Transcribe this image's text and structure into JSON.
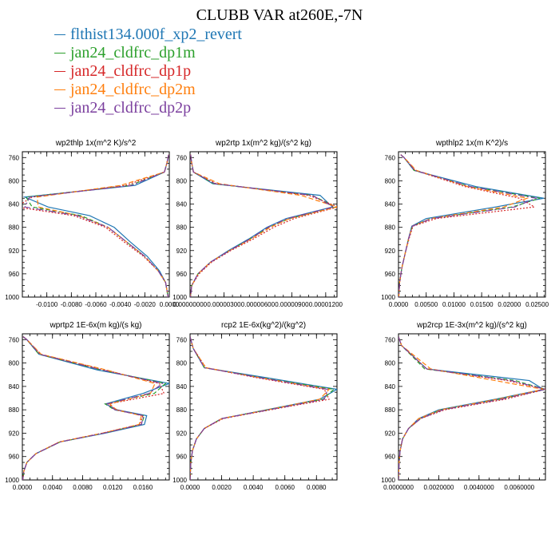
{
  "figure": {
    "title": "CLUBB VAR at260E,-7N"
  },
  "legend": [
    {
      "name": "flthist134.000f_xp2_revert",
      "color": "#1f77b4"
    },
    {
      "name": "jan24_cldfrc_dp1m",
      "color": "#2ca02c"
    },
    {
      "name": "jan24_cldfrc_dp1p",
      "color": "#d62728"
    },
    {
      "name": "jan24_cldfrc_dp2m",
      "color": "#ff7f0e"
    },
    {
      "name": "jan24_cldfrc_dp2p",
      "color": "#7b3f9e"
    }
  ],
  "chart_data": [
    {
      "type": "line",
      "title": "wp2thlp   1x(m^2 K)/s^2",
      "xlim": [
        -0.012,
        0.0
      ],
      "ylim": [
        1000,
        750
      ],
      "xticks": [
        -0.01,
        -0.008,
        -0.006,
        -0.004,
        -0.002,
        0.0
      ],
      "xtick_labels": [
        "-0.0100",
        "-0.0080",
        "-0.0060",
        "-0.0040",
        "-0.0020",
        "0.0000"
      ],
      "yticks": [
        760,
        800,
        840,
        880,
        920,
        960,
        1000
      ],
      "y": [
        755,
        770,
        785,
        808,
        828,
        845,
        860,
        880,
        905,
        930,
        955,
        975,
        1000
      ],
      "series": [
        {
          "name": "flthist134.000f_xp2_revert",
          "color": "#1f77b4",
          "dash": "",
          "values": [
            -5e-05,
            -0.0002,
            -0.0004,
            -0.0028,
            -0.0118,
            -0.0099,
            -0.0065,
            -0.0045,
            -0.0032,
            -0.0018,
            -0.0008,
            -0.0003,
            -0.0001
          ]
        },
        {
          "name": "jan24_cldfrc_dp1m",
          "color": "#2ca02c",
          "dash": "5,3",
          "values": [
            -5e-05,
            -0.0002,
            -0.0004,
            -0.0032,
            -0.0117,
            -0.0112,
            -0.0072,
            -0.005,
            -0.0035,
            -0.002,
            -0.0009,
            -0.0003,
            -0.0001
          ]
        },
        {
          "name": "jan24_cldfrc_dp1p",
          "color": "#d62728",
          "dash": "2,2",
          "values": [
            -5e-05,
            -0.0002,
            -0.0004,
            -0.0036,
            -0.0112,
            -0.0125,
            -0.0078,
            -0.0052,
            -0.0037,
            -0.0021,
            -0.0009,
            -0.0003,
            -0.0001
          ]
        },
        {
          "name": "jan24_cldfrc_dp2m",
          "color": "#ff7f0e",
          "dash": "6,3",
          "values": [
            -5e-05,
            -0.0002,
            -0.0004,
            -0.004,
            -0.0108,
            -0.0107,
            -0.0074,
            -0.005,
            -0.0035,
            -0.002,
            -0.0009,
            -0.0003,
            -0.0001
          ]
        },
        {
          "name": "jan24_cldfrc_dp2p",
          "color": "#7b3f9e",
          "dash": "8,3,2,3",
          "values": [
            -5e-05,
            -0.0002,
            -0.0004,
            -0.0031,
            -0.0114,
            -0.0118,
            -0.0075,
            -0.005,
            -0.0035,
            -0.002,
            -0.0009,
            -0.0003,
            -0.0001
          ]
        }
      ]
    },
    {
      "type": "line",
      "title": "wp2rtp   1x(m^2 kg)/(s^2 kg)",
      "xlim": [
        0.0,
        1.3e-05
      ],
      "ylim": [
        1000,
        750
      ],
      "xticks": [
        0.0,
        3e-06,
        6e-06,
        9e-06,
        1.2e-05
      ],
      "xtick_labels": [
        "0.00000000",
        "0.00000300",
        "0.00000600",
        "0.00000900",
        "0.00001200"
      ],
      "yticks": [
        760,
        800,
        840,
        880,
        920,
        960,
        1000
      ],
      "y": [
        755,
        770,
        785,
        805,
        825,
        845,
        865,
        880,
        900,
        920,
        940,
        960,
        980,
        1000
      ],
      "series": [
        {
          "name": "flthist134.000f_xp2_revert",
          "color": "#1f77b4",
          "dash": "",
          "values": [
            5e-08,
            1.5e-07,
            3e-07,
            2e-06,
            1.15e-05,
            1.26e-05,
            8.5e-06,
            6.8e-06,
            5.2e-06,
            3.4e-06,
            1.8e-06,
            7e-07,
            1.5e-07,
            3e-08
          ]
        },
        {
          "name": "jan24_cldfrc_dp1m",
          "color": "#2ca02c",
          "dash": "5,3",
          "values": [
            5e-08,
            1.5e-07,
            3e-07,
            2.1e-06,
            1.08e-05,
            1.29e-05,
            8.8e-06,
            7e-06,
            5.3e-06,
            3.5e-06,
            1.8e-06,
            7e-07,
            1.5e-07,
            3e-08
          ]
        },
        {
          "name": "jan24_cldfrc_dp1p",
          "color": "#d62728",
          "dash": "2,2",
          "values": [
            5e-08,
            1.5e-07,
            3e-07,
            2.3e-06,
            1.05e-05,
            1.31e-05,
            9.2e-06,
            7.4e-06,
            5.6e-06,
            3.6e-06,
            1.9e-06,
            8e-07,
            1.5e-07,
            3e-08
          ]
        },
        {
          "name": "jan24_cldfrc_dp2m",
          "color": "#ff7f0e",
          "dash": "6,3",
          "values": [
            5e-08,
            1.5e-07,
            3e-07,
            2.6e-06,
            9.8e-06,
            1.3e-05,
            8.8e-06,
            7.1e-06,
            5.4e-06,
            3.5e-06,
            1.8e-06,
            7e-07,
            1.5e-07,
            3e-08
          ]
        },
        {
          "name": "jan24_cldfrc_dp2p",
          "color": "#7b3f9e",
          "dash": "8,3,2,3",
          "values": [
            5e-08,
            1.5e-07,
            3e-07,
            2.2e-06,
            1.08e-05,
            1.27e-05,
            8.6e-06,
            6.9e-06,
            5.3e-06,
            3.5e-06,
            1.8e-06,
            7e-07,
            1.5e-07,
            3e-08
          ]
        }
      ]
    },
    {
      "type": "line",
      "title": "wpthlp2   1x(m K^2)/s",
      "xlim": [
        0.0,
        0.0265
      ],
      "ylim": [
        1000,
        750
      ],
      "xticks": [
        0.0,
        0.005,
        0.01,
        0.015,
        0.02,
        0.025
      ],
      "xtick_labels": [
        "0.0000",
        "0.00500",
        "0.01000",
        "0.01500",
        "0.02000",
        "0.02500"
      ],
      "yticks": [
        760,
        800,
        840,
        880,
        920,
        960,
        1000
      ],
      "y": [
        755,
        760,
        782,
        810,
        830,
        845,
        865,
        878,
        900,
        925,
        950,
        975,
        1000
      ],
      "series": [
        {
          "name": "flthist134.000f_xp2_revert",
          "color": "#1f77b4",
          "dash": "",
          "values": [
            0.0004,
            0.001,
            0.0028,
            0.014,
            0.0262,
            0.0175,
            0.005,
            0.0024,
            0.0018,
            0.0012,
            0.0006,
            0.0002,
            5e-05
          ]
        },
        {
          "name": "jan24_cldfrc_dp1m",
          "color": "#2ca02c",
          "dash": "5,3",
          "values": [
            0.0004,
            0.001,
            0.0028,
            0.013,
            0.0255,
            0.0205,
            0.0058,
            0.0025,
            0.0018,
            0.0012,
            0.0006,
            0.0002,
            5e-05
          ]
        },
        {
          "name": "jan24_cldfrc_dp1p",
          "color": "#d62728",
          "dash": "2,2",
          "values": [
            0.0004,
            0.001,
            0.003,
            0.012,
            0.0218,
            0.0245,
            0.0068,
            0.0026,
            0.0019,
            0.0012,
            0.0006,
            0.0002,
            5e-05
          ]
        },
        {
          "name": "jan24_cldfrc_dp2m",
          "color": "#ff7f0e",
          "dash": "6,3",
          "values": [
            0.0004,
            0.001,
            0.0032,
            0.0125,
            0.0232,
            0.019,
            0.0058,
            0.0025,
            0.0018,
            0.0012,
            0.0006,
            0.0002,
            5e-05
          ]
        },
        {
          "name": "jan24_cldfrc_dp2p",
          "color": "#7b3f9e",
          "dash": "8,3,2,3",
          "values": [
            0.0004,
            0.001,
            0.0029,
            0.013,
            0.0248,
            0.021,
            0.006,
            0.0025,
            0.0018,
            0.0012,
            0.0006,
            0.0002,
            5e-05
          ]
        }
      ]
    },
    {
      "type": "line",
      "title": "wprtp2   1E-6x(m kg)/(s kg)",
      "xlim": [
        0.0,
        0.0195
      ],
      "ylim": [
        1000,
        750
      ],
      "xticks": [
        0.0,
        0.004,
        0.008,
        0.012,
        0.016
      ],
      "xtick_labels": [
        "0.0000",
        "0.0040",
        "0.0080",
        "0.0120",
        "0.0160"
      ],
      "yticks": [
        760,
        800,
        840,
        880,
        920,
        960,
        1000
      ],
      "y": [
        755,
        760,
        785,
        812,
        835,
        852,
        870,
        880,
        890,
        905,
        920,
        935,
        955,
        970,
        985,
        1000
      ],
      "series": [
        {
          "name": "flthist134.000f_xp2_revert",
          "color": "#1f77b4",
          "dash": "",
          "values": [
            0.0001,
            0.0006,
            0.0022,
            0.01,
            0.0195,
            0.016,
            0.011,
            0.0126,
            0.0165,
            0.0162,
            0.011,
            0.005,
            0.0018,
            0.0006,
            0.0002,
            5e-05
          ]
        },
        {
          "name": "jan24_cldfrc_dp1m",
          "color": "#2ca02c",
          "dash": "5,3",
          "values": [
            0.0001,
            0.0006,
            0.0022,
            0.0105,
            0.019,
            0.0175,
            0.011,
            0.0122,
            0.0162,
            0.0158,
            0.0108,
            0.005,
            0.0018,
            0.0006,
            0.0002,
            5e-05
          ]
        },
        {
          "name": "jan24_cldfrc_dp1p",
          "color": "#d62728",
          "dash": "2,2",
          "values": [
            0.0001,
            0.0006,
            0.0024,
            0.011,
            0.0182,
            0.0188,
            0.0114,
            0.0124,
            0.016,
            0.0156,
            0.0106,
            0.0049,
            0.0018,
            0.0006,
            0.0002,
            5e-05
          ]
        },
        {
          "name": "jan24_cldfrc_dp2m",
          "color": "#ff7f0e",
          "dash": "6,3",
          "values": [
            0.0001,
            0.0006,
            0.0025,
            0.0112,
            0.0176,
            0.017,
            0.0116,
            0.0125,
            0.0158,
            0.0155,
            0.0106,
            0.0049,
            0.0018,
            0.0006,
            0.0002,
            5e-05
          ]
        },
        {
          "name": "jan24_cldfrc_dp2p",
          "color": "#7b3f9e",
          "dash": "8,3,2,3",
          "values": [
            0.0001,
            0.0006,
            0.0023,
            0.0106,
            0.0186,
            0.0168,
            0.0112,
            0.0123,
            0.0161,
            0.0158,
            0.0108,
            0.005,
            0.0018,
            0.0006,
            0.0002,
            5e-05
          ]
        }
      ]
    },
    {
      "type": "line",
      "title": "rcp2   1E-6x(kg^2)/(kg^2)",
      "xlim": [
        0.0,
        0.0093
      ],
      "ylim": [
        1000,
        750
      ],
      "xticks": [
        0.0,
        0.002,
        0.004,
        0.006,
        0.008
      ],
      "xtick_labels": [
        "0.0000",
        "0.0020",
        "0.0040",
        "0.0060",
        "0.0080"
      ],
      "yticks": [
        760,
        800,
        840,
        880,
        920,
        960,
        1000
      ],
      "y": [
        755,
        775,
        808,
        825,
        845,
        862,
        878,
        895,
        912,
        930,
        950,
        970,
        1000
      ],
      "series": [
        {
          "name": "flthist134.000f_xp2_revert",
          "color": "#1f77b4",
          "dash": "",
          "values": [
            0.0,
            0.0002,
            0.0009,
            0.0048,
            0.0093,
            0.0082,
            0.0052,
            0.002,
            0.0009,
            0.0004,
            0.00015,
            5e-05,
            0.0
          ]
        },
        {
          "name": "jan24_cldfrc_dp1m",
          "color": "#2ca02c",
          "dash": "5,3",
          "values": [
            0.0,
            0.0002,
            0.0009,
            0.0045,
            0.0091,
            0.0084,
            0.0053,
            0.002,
            0.0009,
            0.0004,
            0.00015,
            5e-05,
            0.0
          ]
        },
        {
          "name": "jan24_cldfrc_dp1p",
          "color": "#d62728",
          "dash": "2,2",
          "values": [
            0.0,
            0.0002,
            0.001,
            0.0042,
            0.0085,
            0.0088,
            0.0055,
            0.0021,
            0.0009,
            0.0004,
            0.00015,
            5e-05,
            0.0
          ]
        },
        {
          "name": "jan24_cldfrc_dp2m",
          "color": "#ff7f0e",
          "dash": "6,3",
          "values": [
            0.0,
            0.0002,
            0.001,
            0.0044,
            0.0088,
            0.0082,
            0.0053,
            0.002,
            0.0009,
            0.0004,
            0.00015,
            5e-05,
            0.0
          ]
        },
        {
          "name": "jan24_cldfrc_dp2p",
          "color": "#7b3f9e",
          "dash": "8,3,2,3",
          "values": [
            0.0,
            0.0002,
            0.0009,
            0.0044,
            0.0087,
            0.0085,
            0.0054,
            0.002,
            0.0009,
            0.0004,
            0.00015,
            5e-05,
            0.0
          ]
        }
      ]
    },
    {
      "type": "line",
      "title": "wp2rcp   1E-3x(m^2 kg)/(s^2 kg)",
      "xlim": [
        0.0,
        0.0073
      ],
      "ylim": [
        1000,
        750
      ],
      "xticks": [
        0.0,
        0.002,
        0.004,
        0.006
      ],
      "xtick_labels": [
        "0.0000000",
        "0.0020000",
        "0.0040000",
        "0.0060000"
      ],
      "yticks": [
        760,
        800,
        840,
        880,
        920,
        960,
        1000
      ],
      "y": [
        755,
        770,
        810,
        830,
        845,
        862,
        880,
        895,
        912,
        930,
        950,
        970,
        1000
      ],
      "series": [
        {
          "name": "flthist134.000f_xp2_revert",
          "color": "#1f77b4",
          "dash": "",
          "values": [
            0.0,
            0.00015,
            0.0014,
            0.0065,
            0.0072,
            0.0048,
            0.002,
            0.001,
            0.0005,
            0.0002,
            8e-05,
            3e-05,
            0.0
          ]
        },
        {
          "name": "jan24_cldfrc_dp1m",
          "color": "#2ca02c",
          "dash": "5,3",
          "values": [
            0.0,
            0.00015,
            0.0013,
            0.0058,
            0.0073,
            0.005,
            0.0021,
            0.0011,
            0.0005,
            0.0002,
            8e-05,
            3e-05,
            0.0
          ]
        },
        {
          "name": "jan24_cldfrc_dp1p",
          "color": "#d62728",
          "dash": "2,2",
          "values": [
            0.0,
            0.00015,
            0.0014,
            0.0054,
            0.0073,
            0.0053,
            0.0023,
            0.0011,
            0.0005,
            0.0002,
            8e-05,
            3e-05,
            0.0
          ]
        },
        {
          "name": "jan24_cldfrc_dp2m",
          "color": "#ff7f0e",
          "dash": "6,3",
          "values": [
            0.0,
            0.00015,
            0.0016,
            0.0048,
            0.0072,
            0.0049,
            0.0021,
            0.001,
            0.0005,
            0.0002,
            8e-05,
            3e-05,
            0.0
          ]
        },
        {
          "name": "jan24_cldfrc_dp2p",
          "color": "#7b3f9e",
          "dash": "8,3,2,3",
          "values": [
            0.0,
            0.00015,
            0.0014,
            0.0056,
            0.0073,
            0.0051,
            0.0022,
            0.0011,
            0.0005,
            0.0002,
            8e-05,
            3e-05,
            0.0
          ]
        }
      ]
    }
  ]
}
